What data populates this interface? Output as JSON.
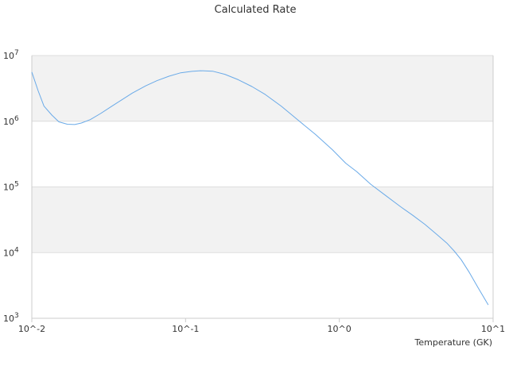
{
  "chart_data": {
    "type": "line",
    "title": "Calculated Rate",
    "xlabel": "Temperature (GK)",
    "ylabel": "",
    "x_scale": "log",
    "y_scale": "log",
    "xlim": [
      0.01,
      10
    ],
    "ylim": [
      1000,
      10000000
    ],
    "grid": true,
    "banded_background": true,
    "legend": "none",
    "colors": {
      "line": "#6aaae8",
      "band": "#f2f2f2",
      "grid": "#dddddd",
      "axis": "#cccccc",
      "text": "#333333"
    },
    "x_ticks": [
      {
        "value": 0.01,
        "label": "10^-2"
      },
      {
        "value": 0.1,
        "label": "10^-1"
      },
      {
        "value": 1,
        "label": "10^0"
      },
      {
        "value": 10,
        "label": "10^1"
      }
    ],
    "y_ticks": [
      {
        "value": 1000,
        "base": "10",
        "exp": "3"
      },
      {
        "value": 10000,
        "base": "10",
        "exp": "4"
      },
      {
        "value": 100000,
        "base": "10",
        "exp": "5"
      },
      {
        "value": 1000000,
        "base": "10",
        "exp": "6"
      },
      {
        "value": 10000000,
        "base": "10",
        "exp": "7"
      }
    ],
    "series": [
      {
        "x": [
          0.01,
          0.011,
          0.012,
          0.0135,
          0.015,
          0.017,
          0.019,
          0.021,
          0.024,
          0.028,
          0.033,
          0.038,
          0.045,
          0.055,
          0.065,
          0.078,
          0.093,
          0.11,
          0.125,
          0.15,
          0.18,
          0.22,
          0.27,
          0.33,
          0.42,
          0.55,
          0.7,
          0.9,
          1.1,
          1.3,
          1.6,
          2.0,
          2.5,
          3.0,
          3.6,
          4.3,
          5.0,
          5.6,
          6.2,
          7.0,
          8.0,
          9.3
        ],
        "values": [
          5600000,
          2900000,
          1700000,
          1240000,
          980000,
          900000,
          890000,
          940000,
          1060000,
          1310000,
          1680000,
          2080000,
          2680000,
          3450000,
          4140000,
          4850000,
          5460000,
          5750000,
          5870000,
          5780000,
          5180000,
          4290000,
          3380000,
          2550000,
          1690000,
          1000000,
          630000,
          370000,
          230000,
          170000,
          110000,
          74000,
          50000,
          37000,
          27000,
          19000,
          14000,
          10500,
          7800,
          5000,
          2900,
          1600
        ]
      }
    ]
  }
}
